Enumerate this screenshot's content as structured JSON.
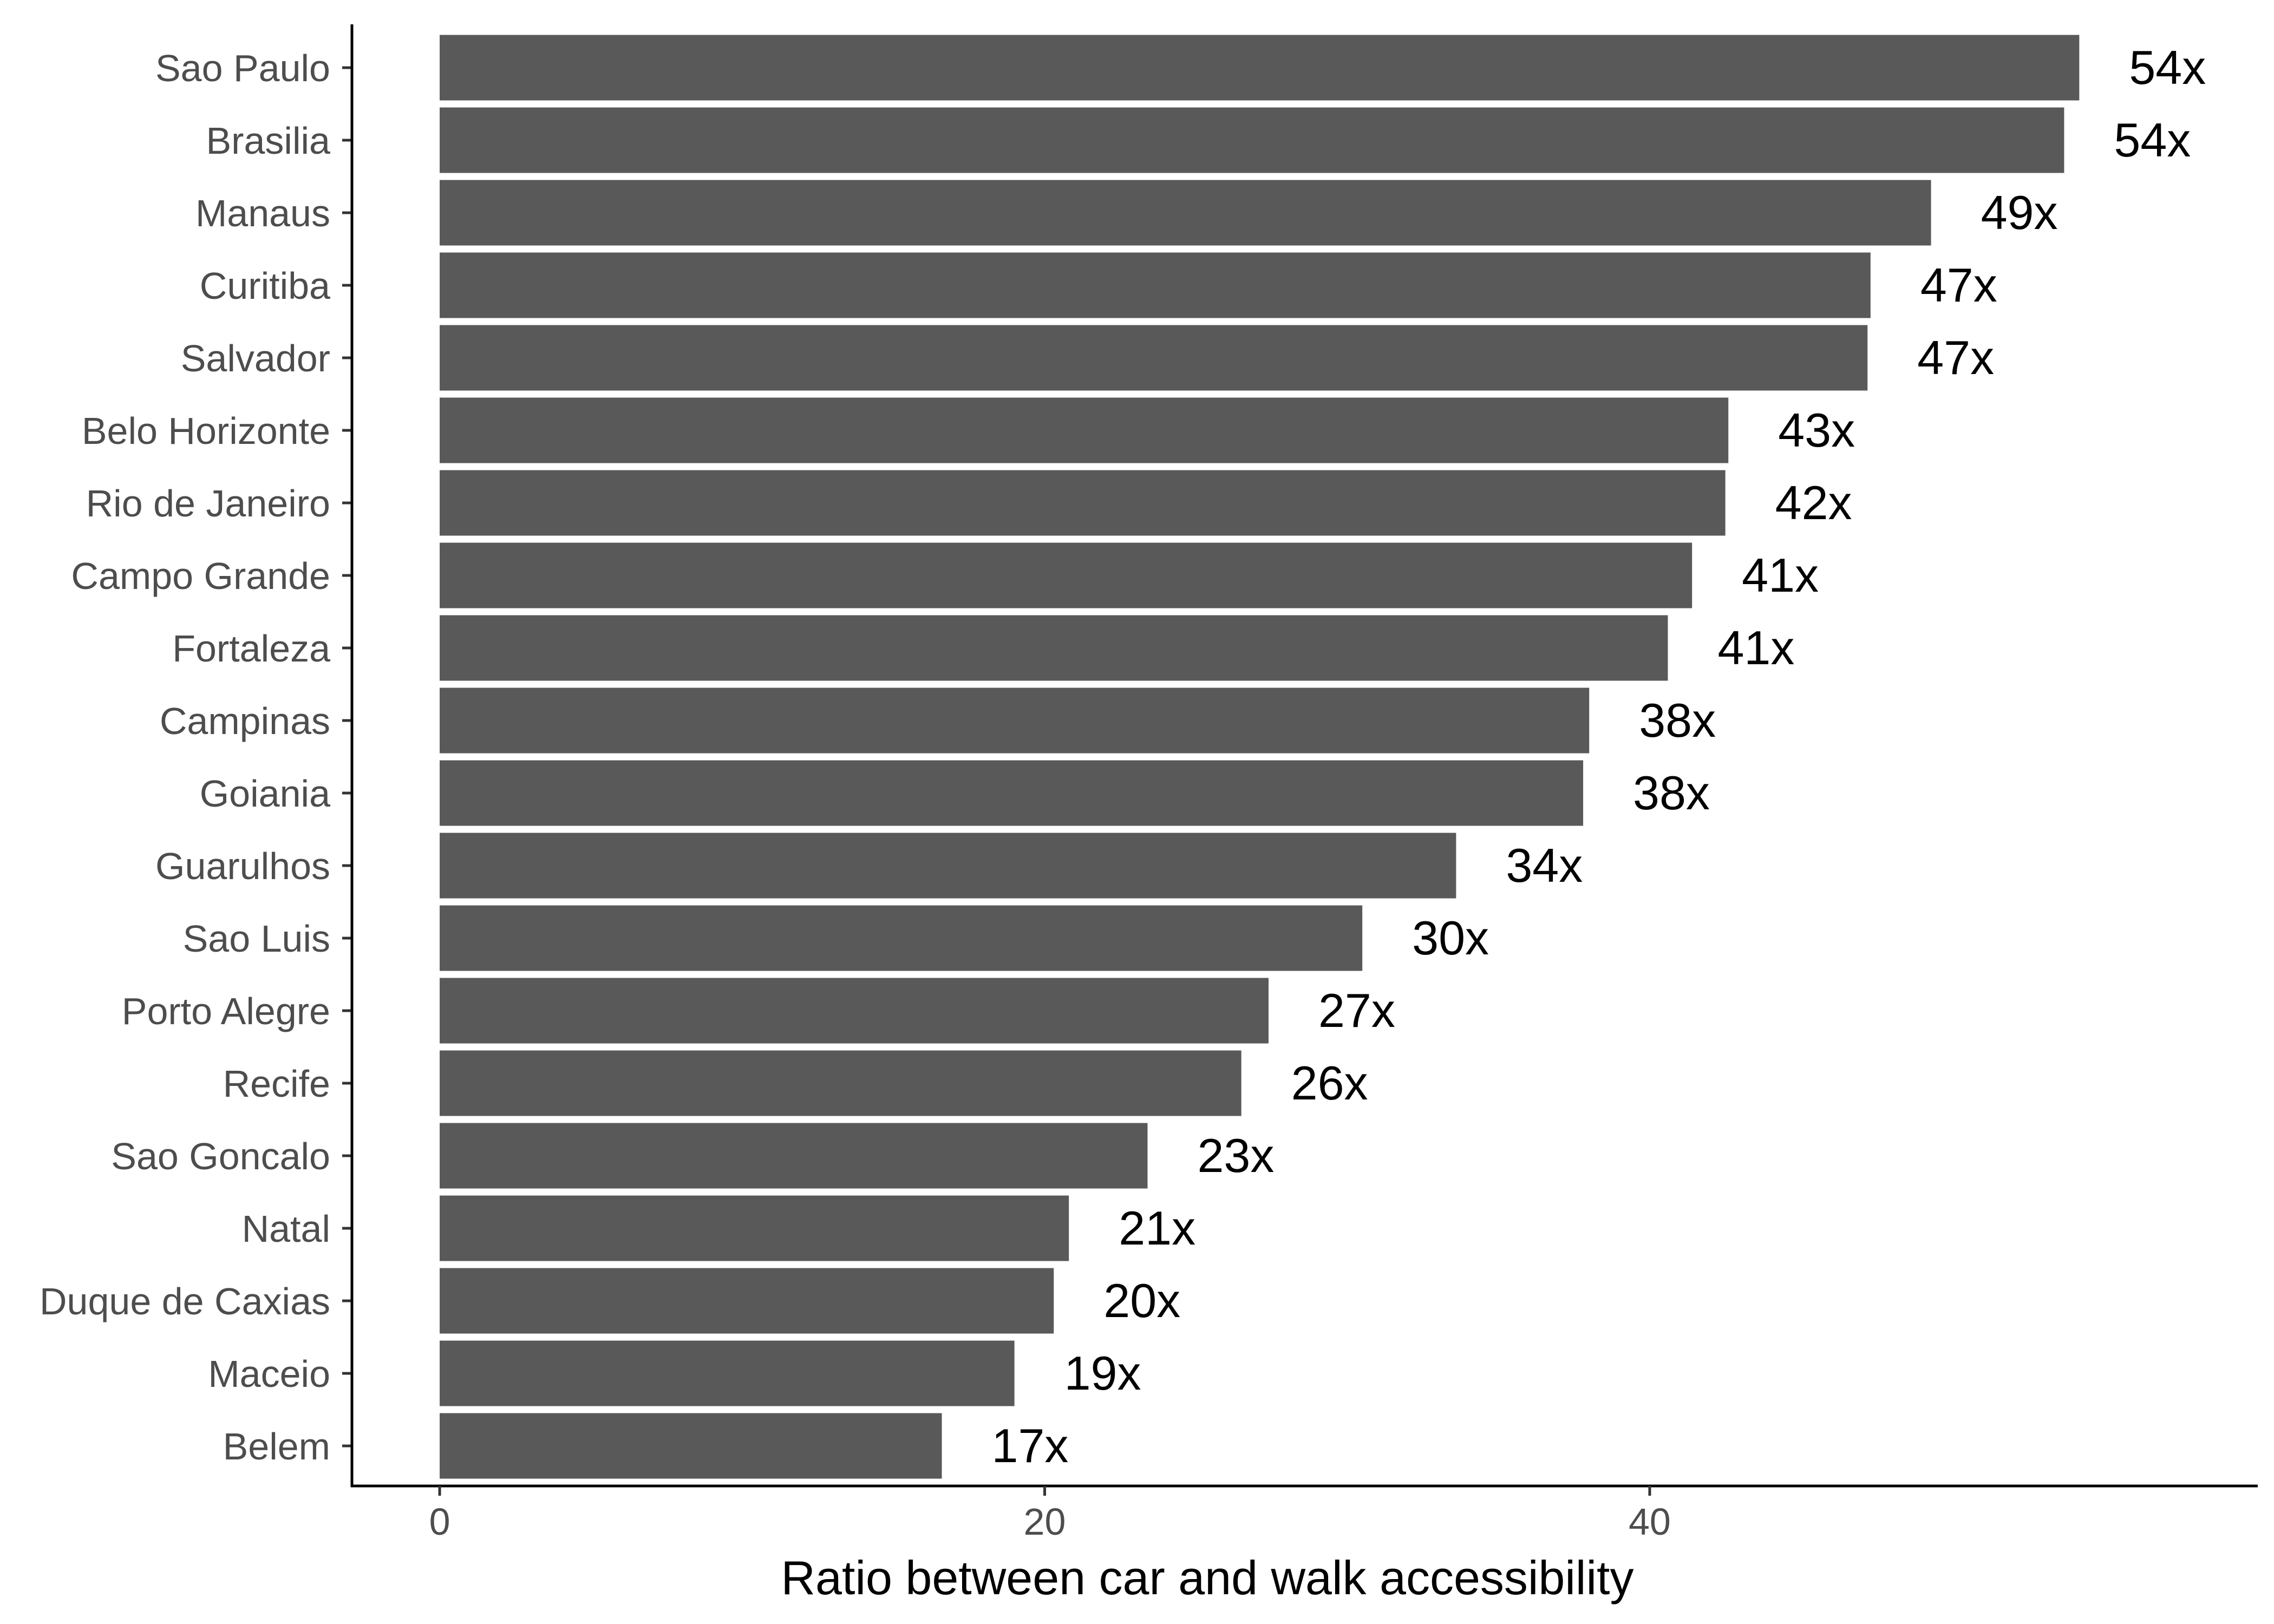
{
  "chart_data": {
    "type": "bar",
    "orientation": "horizontal",
    "title": "",
    "xlabel": "Ratio between car and walk accessibility",
    "ylabel": "",
    "xlim": [
      -2.9,
      60.1
    ],
    "x_ticks": [
      0,
      20,
      40
    ],
    "x_tick_labels": [
      "0",
      "20",
      "40"
    ],
    "grid": false,
    "legend": "none",
    "bar_color": "#595959",
    "categories": [
      "Sao Paulo",
      "Brasilia",
      "Manaus",
      "Curitiba",
      "Salvador",
      "Belo Horizonte",
      "Rio de Janeiro",
      "Campo Grande",
      "Fortaleza",
      "Campinas",
      "Goiania",
      "Guarulhos",
      "Sao Luis",
      "Porto Alegre",
      "Recife",
      "Sao Goncalo",
      "Natal",
      "Duque de Caxias",
      "Maceio",
      "Belem"
    ],
    "values": [
      54.2,
      53.7,
      49.3,
      47.3,
      47.2,
      42.6,
      42.5,
      41.4,
      40.6,
      38.0,
      37.8,
      33.6,
      30.5,
      27.4,
      26.5,
      23.4,
      20.8,
      20.3,
      19.0,
      16.6
    ],
    "data_labels": [
      "54x",
      "54x",
      "49x",
      "47x",
      "47x",
      "43x",
      "42x",
      "41x",
      "41x",
      "38x",
      "38x",
      "34x",
      "30x",
      "27x",
      "26x",
      "23x",
      "21x",
      "20x",
      "19x",
      "17x"
    ]
  }
}
